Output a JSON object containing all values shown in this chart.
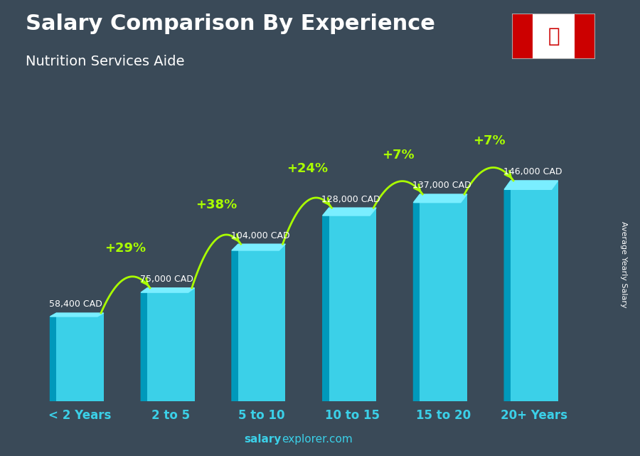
{
  "title": "Salary Comparison By Experience",
  "subtitle": "Nutrition Services Aide",
  "categories": [
    "< 2 Years",
    "2 to 5",
    "5 to 10",
    "10 to 15",
    "15 to 20",
    "20+ Years"
  ],
  "values": [
    58400,
    75000,
    104000,
    128000,
    137000,
    146000
  ],
  "value_labels": [
    "58,400 CAD",
    "75,000 CAD",
    "104,000 CAD",
    "128,000 CAD",
    "137,000 CAD",
    "146,000 CAD"
  ],
  "pct_changes": [
    "+29%",
    "+38%",
    "+24%",
    "+7%",
    "+7%"
  ],
  "bar_color_main": "#3bd0e8",
  "bar_color_dark": "#0099bb",
  "bar_color_top": "#7aeeff",
  "background_color": "#3a4a58",
  "title_color": "#ffffff",
  "subtitle_color": "#ffffff",
  "label_color": "#ffffff",
  "pct_color": "#aaff00",
  "tick_color": "#3bd0e8",
  "footer_salary_bold": "salary",
  "footer_rest": "explorer.com",
  "footer_color": "#3bd0e8",
  "ylabel": "Average Yearly Salary",
  "ylim_max": 175000,
  "bar_width": 0.52
}
